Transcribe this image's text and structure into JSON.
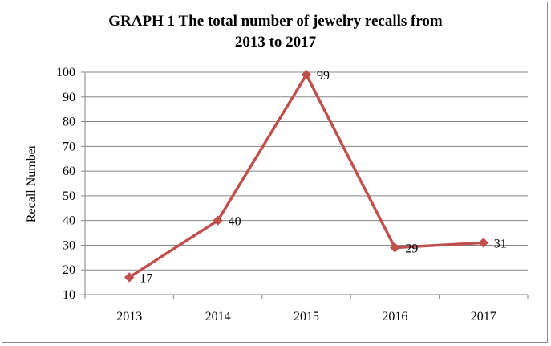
{
  "chart_data": {
    "type": "line",
    "title_lines": [
      "GRAPH 1 The total number of  jewelry recalls from",
      "2013 to 2017"
    ],
    "xlabel": "",
    "ylabel": "Recall Number",
    "categories": [
      "2013",
      "2014",
      "2015",
      "2016",
      "2017"
    ],
    "series": [
      {
        "name": "Recalls",
        "values": [
          17,
          40,
          99,
          29,
          31
        ],
        "color": "#c0504d"
      }
    ],
    "ylim": [
      10,
      100
    ],
    "yticks": [
      10,
      20,
      30,
      40,
      50,
      60,
      70,
      80,
      90,
      100
    ],
    "grid": true,
    "legend": "none"
  }
}
